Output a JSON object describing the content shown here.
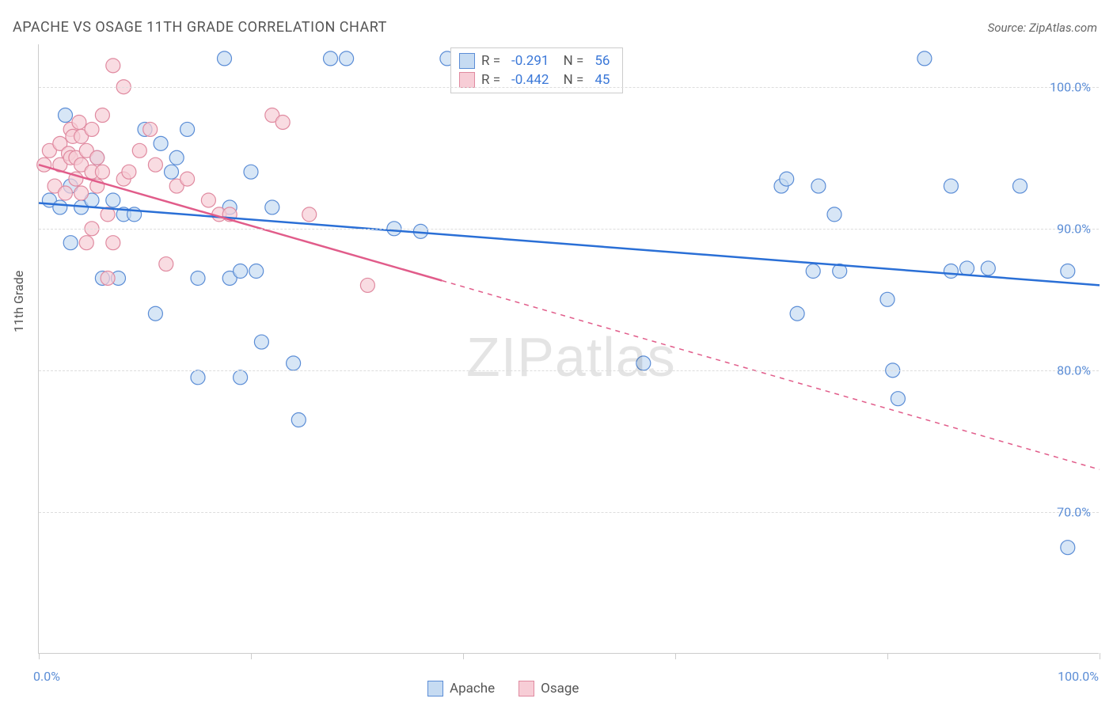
{
  "title": "APACHE VS OSAGE 11TH GRADE CORRELATION CHART",
  "source": "Source: ZipAtlas.com",
  "ylabel": "11th Grade",
  "watermark_bold": "ZIP",
  "watermark_thin": "atlas",
  "chart": {
    "type": "scatter",
    "xlim": [
      0,
      100
    ],
    "ylim": [
      60,
      103
    ],
    "xtick_positions": [
      0,
      20,
      40,
      60,
      80,
      100
    ],
    "xtick_labels": {
      "0": "0.0%",
      "100": "100.0%"
    },
    "ytick_positions": [
      70,
      80,
      90,
      100
    ],
    "ytick_labels": [
      "70.0%",
      "80.0%",
      "90.0%",
      "100.0%"
    ],
    "background_color": "#ffffff",
    "grid_color": "#dddddd",
    "axis_color": "#cccccc",
    "tick_label_color": "#5b8dd6",
    "series": [
      {
        "name": "Apache",
        "R": "-0.291",
        "N": "56",
        "marker_fill": "#c6dbf2",
        "marker_stroke": "#5b8dd6",
        "marker_opacity": 0.7,
        "marker_radius": 9,
        "trend_color": "#2a6fd6",
        "trend_width": 2.5,
        "trend_solid_from": 0,
        "trend_solid_to": 100,
        "trend": {
          "x1": 0,
          "y1": 91.8,
          "x2": 100,
          "y2": 86.0
        },
        "points": [
          [
            1,
            92
          ],
          [
            2,
            91.5
          ],
          [
            2.5,
            98
          ],
          [
            3,
            93
          ],
          [
            3,
            89
          ],
          [
            4,
            91.5
          ],
          [
            5,
            92
          ],
          [
            5.5,
            95
          ],
          [
            6,
            86.5
          ],
          [
            7,
            92
          ],
          [
            7.5,
            86.5
          ],
          [
            8,
            91
          ],
          [
            9,
            91
          ],
          [
            10,
            97
          ],
          [
            11,
            84
          ],
          [
            11.5,
            96
          ],
          [
            12.5,
            94
          ],
          [
            13,
            95
          ],
          [
            14,
            97
          ],
          [
            15,
            86.5
          ],
          [
            15,
            79.5
          ],
          [
            17.5,
            102
          ],
          [
            18,
            91.5
          ],
          [
            18,
            86.5
          ],
          [
            19,
            87
          ],
          [
            19,
            79.5
          ],
          [
            20,
            94
          ],
          [
            20.5,
            87
          ],
          [
            21,
            82
          ],
          [
            22,
            91.5
          ],
          [
            24,
            80.5
          ],
          [
            24.5,
            76.5
          ],
          [
            27.5,
            102
          ],
          [
            29,
            102
          ],
          [
            33.5,
            90
          ],
          [
            36,
            89.8
          ],
          [
            38.5,
            102
          ],
          [
            57,
            80.5
          ],
          [
            70,
            93
          ],
          [
            70.5,
            93.5
          ],
          [
            71.5,
            84
          ],
          [
            73,
            87
          ],
          [
            73.5,
            93
          ],
          [
            75,
            91
          ],
          [
            75.5,
            87
          ],
          [
            80,
            85
          ],
          [
            81,
            78
          ],
          [
            80.5,
            80
          ],
          [
            83.5,
            102
          ],
          [
            86,
            93
          ],
          [
            86,
            87
          ],
          [
            87.5,
            87.2
          ],
          [
            89.5,
            87.2
          ],
          [
            92.5,
            93
          ],
          [
            97,
            67.5
          ],
          [
            97,
            87
          ]
        ]
      },
      {
        "name": "Osage",
        "R": "-0.442",
        "N": "45",
        "marker_fill": "#f7cdd6",
        "marker_stroke": "#e08aa0",
        "marker_opacity": 0.7,
        "marker_radius": 9,
        "trend_color": "#e15c8a",
        "trend_width": 2.5,
        "trend_solid_from": 0,
        "trend_solid_to": 38,
        "trend": {
          "x1": 0,
          "y1": 94.5,
          "x2": 100,
          "y2": 73.0
        },
        "points": [
          [
            0.5,
            94.5
          ],
          [
            1,
            95.5
          ],
          [
            1.5,
            93
          ],
          [
            2,
            94.5
          ],
          [
            2,
            96
          ],
          [
            2.5,
            92.5
          ],
          [
            2.8,
            95.3
          ],
          [
            3,
            97
          ],
          [
            3,
            95
          ],
          [
            3.2,
            96.5
          ],
          [
            3.5,
            95
          ],
          [
            3.5,
            93.5
          ],
          [
            3.8,
            97.5
          ],
          [
            4,
            96.5
          ],
          [
            4,
            94.5
          ],
          [
            4,
            92.5
          ],
          [
            4.5,
            95.5
          ],
          [
            4.5,
            89
          ],
          [
            5,
            97
          ],
          [
            5,
            94
          ],
          [
            5,
            90
          ],
          [
            5.5,
            95
          ],
          [
            5.5,
            93
          ],
          [
            6,
            98
          ],
          [
            6,
            94
          ],
          [
            6.5,
            91
          ],
          [
            6.5,
            86.5
          ],
          [
            7,
            89
          ],
          [
            7,
            101.5
          ],
          [
            8,
            100
          ],
          [
            8,
            93.5
          ],
          [
            8.5,
            94
          ],
          [
            9.5,
            95.5
          ],
          [
            10.5,
            97
          ],
          [
            11,
            94.5
          ],
          [
            12,
            87.5
          ],
          [
            13,
            93
          ],
          [
            14,
            93.5
          ],
          [
            16,
            92
          ],
          [
            17,
            91
          ],
          [
            18,
            91
          ],
          [
            22,
            98
          ],
          [
            23,
            97.5
          ],
          [
            25.5,
            91
          ],
          [
            31,
            86
          ]
        ]
      }
    ],
    "bottom_legend": [
      {
        "label": "Apache",
        "fill": "#c6dbf2",
        "stroke": "#5b8dd6"
      },
      {
        "label": "Osage",
        "fill": "#f7cdd6",
        "stroke": "#e08aa0"
      }
    ]
  }
}
